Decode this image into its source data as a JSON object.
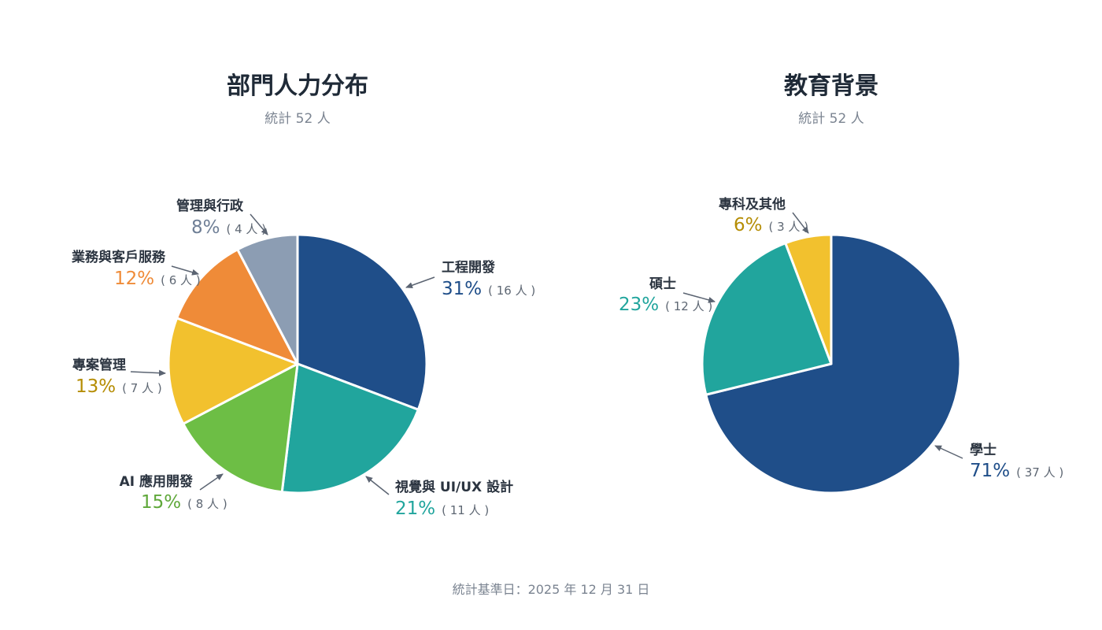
{
  "footer_note": "統計基準日：2025 年 12 月 31 日",
  "colors": {
    "leader": "#5b6472",
    "slice_border": "#ffffff"
  },
  "chart_data": [
    {
      "type": "pie",
      "title": "部門人力分布",
      "subtitle": "統計 52 人",
      "total": 52,
      "slices": [
        {
          "label": "工程開發",
          "value": 16,
          "percent_label": "31%",
          "count_label": "( 16 人 )",
          "color": "#1f4e89",
          "text_color": "#1f4e89"
        },
        {
          "label": "視覺與 UI/UX 設計",
          "value": 11,
          "percent_label": "21%",
          "count_label": "( 11 人 )",
          "color": "#21a59d",
          "text_color": "#21a59d"
        },
        {
          "label": "AI 應用開發",
          "value": 8,
          "percent_label": "15%",
          "count_label": "( 8 人 )",
          "color": "#6dbe45",
          "text_color": "#5fa83a"
        },
        {
          "label": "專案管理",
          "value": 7,
          "percent_label": "13%",
          "count_label": "( 7 人 )",
          "color": "#f2c12e",
          "text_color": "#b58d05"
        },
        {
          "label": "業務與客戶服務",
          "value": 6,
          "percent_label": "12%",
          "count_label": "( 6 人 )",
          "color": "#ef8b38",
          "text_color": "#ef8b38"
        },
        {
          "label": "管理與行政",
          "value": 4,
          "percent_label": "8%",
          "count_label": "( 4 人 )",
          "color": "#8c9db3",
          "text_color": "#6f7f96"
        }
      ]
    },
    {
      "type": "pie",
      "title": "教育背景",
      "subtitle": "統計 52 人",
      "total": 52,
      "slices": [
        {
          "label": "學士",
          "value": 37,
          "percent_label": "71%",
          "count_label": "( 37 人 )",
          "color": "#1f4e89",
          "text_color": "#1f4e89"
        },
        {
          "label": "碩士",
          "value": 12,
          "percent_label": "23%",
          "count_label": "( 12 人 )",
          "color": "#21a59d",
          "text_color": "#21a59d"
        },
        {
          "label": "專科及其他",
          "value": 3,
          "percent_label": "6%",
          "count_label": "( 3 人 )",
          "color": "#f2c12e",
          "text_color": "#b58d05"
        }
      ]
    }
  ]
}
